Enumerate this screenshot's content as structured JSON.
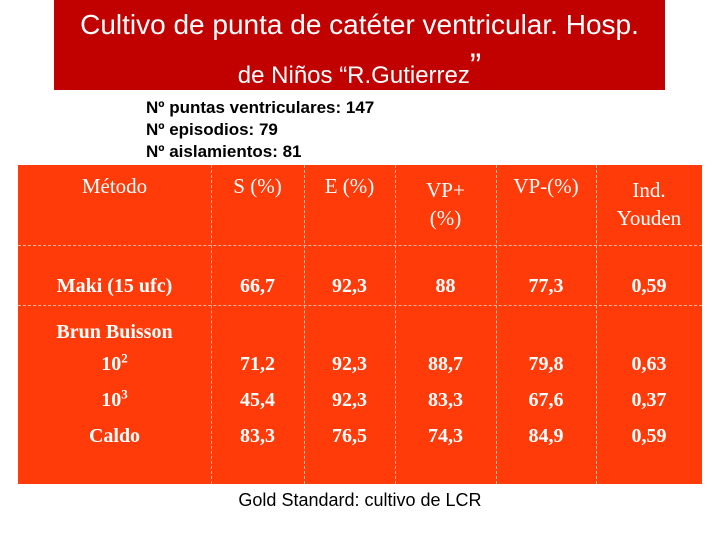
{
  "title": {
    "line1": "Cultivo de punta de catéter ventricular. Hosp.",
    "line2": "de Niños “R.Gutierrez",
    "closing_quote": "”"
  },
  "stats": {
    "puntas": "Nº puntas ventriculares: 147",
    "episodios": "Nº episodios: 79",
    "aislamientos": "Nº aislamientos: 81"
  },
  "table": {
    "headers": {
      "metodo": "Método",
      "s": "S (%)",
      "e": "E (%)",
      "vp_pos_1": "VP+",
      "vp_pos_2": "(%)",
      "vp_neg": "VP-(%)",
      "youden_1": "Ind.",
      "youden_2": "Youden"
    },
    "rows": {
      "maki": {
        "label": "Maki (15 ufc)",
        "values": [
          "66,7",
          "92,3",
          "88",
          "77,3",
          "0,59"
        ]
      },
      "brun": {
        "label": "Brun Buisson"
      },
      "brun_102": {
        "label_base": "10",
        "label_exp": "2",
        "values": [
          "71,2",
          "92,3",
          "88,7",
          "79,8",
          "0,63"
        ]
      },
      "brun_103": {
        "label_base": "10",
        "label_exp": "3",
        "values": [
          "45,4",
          "92,3",
          "83,3",
          "67,6",
          "0,37"
        ]
      },
      "caldo": {
        "label": "Caldo",
        "values": [
          "83,3",
          "76,5",
          "74,3",
          "84,9",
          "0,59"
        ]
      }
    }
  },
  "footer": "Gold Standard: cultivo de LCR",
  "colors": {
    "title_bg": "#c10000",
    "table_bg": "#ff3b0a",
    "table_text": "#ffffff"
  }
}
